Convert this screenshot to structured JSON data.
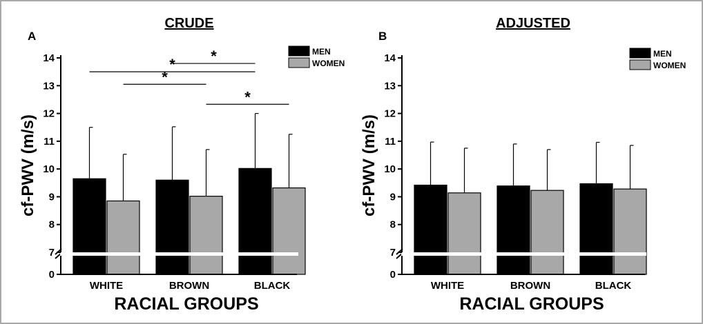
{
  "chart_data": [
    {
      "type": "bar",
      "panel_letter": "A",
      "title": "CRUDE",
      "xlabel": "RACIAL GROUPS",
      "ylabel": "cf-PWV (m/s)",
      "categories": [
        "WHITE",
        "BROWN",
        "BLACK"
      ],
      "ylim": [
        7,
        14
      ],
      "axis_break": true,
      "yticks": [
        "0",
        "7",
        "8",
        "9",
        "10",
        "11",
        "12",
        "13",
        "14"
      ],
      "legend_position": "top-right",
      "series": [
        {
          "name": "MEN",
          "color": "#000000",
          "values": [
            9.65,
            9.6,
            10.02
          ],
          "error_upper": [
            11.5,
            11.52,
            12.0
          ]
        },
        {
          "name": "WOMEN",
          "color": "#a8a8a8",
          "values": [
            8.85,
            9.02,
            9.32
          ],
          "error_upper": [
            10.53,
            10.7,
            11.25
          ]
        }
      ],
      "significance": [
        {
          "from": [
            "WHITE",
            "WOMEN"
          ],
          "to": [
            "BROWN",
            "WOMEN"
          ],
          "level": 13.05,
          "label": "*"
        },
        {
          "from": [
            "WHITE",
            "MEN"
          ],
          "to": [
            "BLACK",
            "MEN"
          ],
          "level": 13.5,
          "label": "*"
        },
        {
          "from": [
            "BROWN",
            "MEN"
          ],
          "to": [
            "BLACK",
            "MEN"
          ],
          "level": 13.8,
          "label": "*"
        },
        {
          "from": [
            "BROWN",
            "WOMEN"
          ],
          "to": [
            "BLACK",
            "WOMEN"
          ],
          "level": 12.33,
          "label": "*"
        }
      ]
    },
    {
      "type": "bar",
      "panel_letter": "B",
      "title": "ADJUSTED",
      "xlabel": "RACIAL GROUPS",
      "ylabel": "cf-PWV (m/s)",
      "categories": [
        "WHITE",
        "BROWN",
        "BLACK"
      ],
      "ylim": [
        7,
        14
      ],
      "axis_break": true,
      "yticks": [
        "0",
        "7",
        "8",
        "9",
        "10",
        "11",
        "12",
        "13",
        "14"
      ],
      "legend_position": "top-right",
      "series": [
        {
          "name": "MEN",
          "color": "#000000",
          "values": [
            9.42,
            9.39,
            9.47
          ],
          "error_upper": [
            10.97,
            10.9,
            10.96
          ]
        },
        {
          "name": "WOMEN",
          "color": "#a8a8a8",
          "values": [
            9.14,
            9.23,
            9.28
          ],
          "error_upper": [
            10.75,
            10.7,
            10.85
          ]
        }
      ],
      "significance": []
    }
  ]
}
